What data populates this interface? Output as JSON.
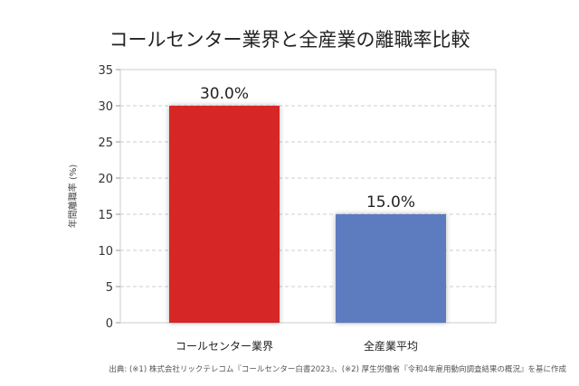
{
  "chart_data": {
    "type": "bar",
    "title": "コールセンター業界と全産業の離職率比較",
    "categories": [
      "コールセンター業界",
      "全産業平均"
    ],
    "values": [
      30.0,
      15.0
    ],
    "data_labels": [
      "30.0%",
      "15.0%"
    ],
    "colors": [
      "#d62728",
      "#5b7bbf"
    ],
    "xlabel": "",
    "ylabel": "年間離職率 (%)",
    "ylim": [
      0,
      35
    ],
    "yticks": [
      0,
      5,
      10,
      15,
      20,
      25,
      30,
      35
    ],
    "grid": true,
    "source": "出典: (※1) 株式会社リックテレコム『コールセンター白書2023』、(※2) 厚生労働省『令和4年雇用動向調査結果の概況』を基に作成"
  }
}
